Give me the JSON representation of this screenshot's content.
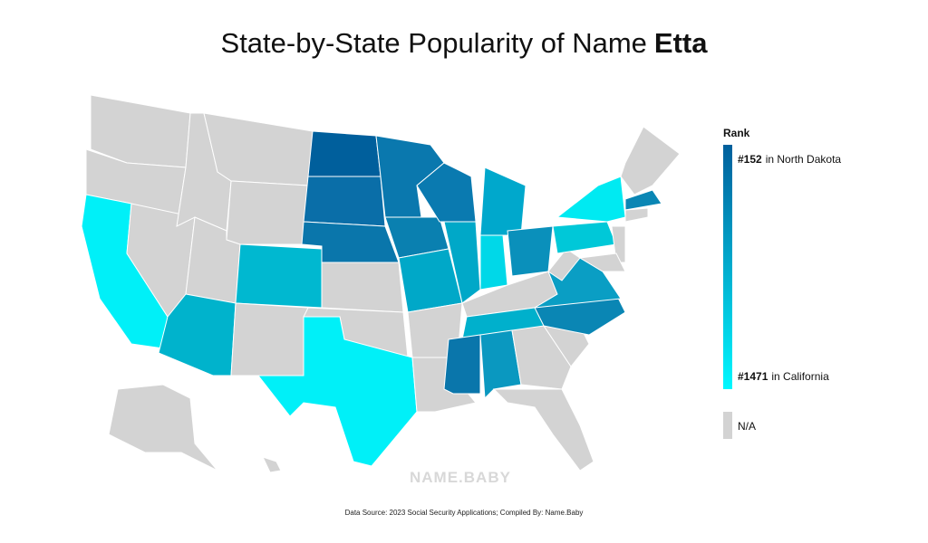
{
  "title": {
    "prefix": "State-by-State Popularity of Name",
    "name": "Etta"
  },
  "legend": {
    "title": "Rank",
    "top": {
      "rank": "#152",
      "label": "in North Dakota"
    },
    "bottom": {
      "rank": "#1471",
      "label": "in California"
    },
    "na": "N/A"
  },
  "watermark": "NAME.BABY",
  "footer": "Data Source: 2023 Social Security Applications; Compiled By: Name.Baby"
}
